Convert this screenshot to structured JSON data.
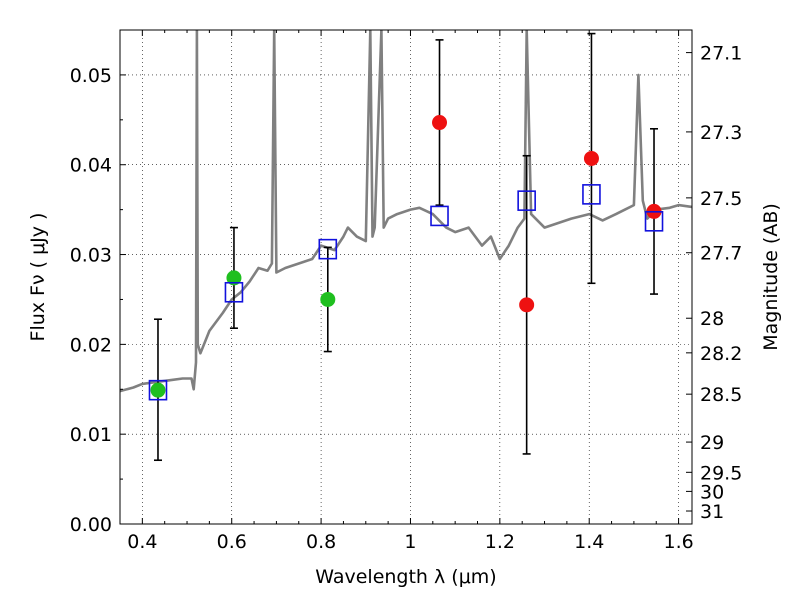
{
  "chart_data": {
    "type": "scatter",
    "xlabel": "Wavelength  λ (μm)",
    "ylabel": "Flux  Fν  ( μJy )",
    "y2label": "Magnitude (AB)",
    "xlim": [
      0.35,
      1.63
    ],
    "ylim": [
      0.0,
      0.055
    ],
    "grid": true,
    "x_ticks": [
      0.4,
      0.6,
      0.8,
      1.0,
      1.2,
      1.4,
      1.6
    ],
    "x_tick_labels": [
      "0.4",
      "0.6",
      "0.8",
      "1",
      "1.2",
      "1.4",
      "1.6"
    ],
    "y_ticks": [
      0.0,
      0.01,
      0.02,
      0.03,
      0.04,
      0.05
    ],
    "y_tick_labels": [
      "0.00",
      "0.01",
      "0.02",
      "0.03",
      "0.04",
      "0.05"
    ],
    "y2_ticks": [
      27.1,
      27.3,
      27.5,
      27.7,
      28,
      28.2,
      28.5,
      29,
      29.5,
      30,
      31
    ],
    "y2_tick_labels": [
      "27.1",
      "27.3",
      "27.5",
      "27.7",
      "28",
      "28.2",
      "28.5",
      "29",
      "29.5",
      "30",
      "31"
    ],
    "series": [
      {
        "marker": "circle",
        "color": "#1fbf1f",
        "points": [
          {
            "x": 0.435,
            "y": 0.0149,
            "err_lo": 0.0078,
            "err_hi": 0.0079
          },
          {
            "x": 0.605,
            "y": 0.0274,
            "err_lo": 0.0056,
            "err_hi": 0.0056
          },
          {
            "x": 0.815,
            "y": 0.025,
            "err_lo": 0.0058,
            "err_hi": 0.0058
          }
        ]
      },
      {
        "marker": "circle",
        "color": "#ee1111",
        "points": [
          {
            "x": 1.065,
            "y": 0.0447,
            "err_lo": 0.0092,
            "err_hi": 0.0092
          },
          {
            "x": 1.26,
            "y": 0.0244,
            "err_lo": 0.0166,
            "err_hi": 0.0166
          },
          {
            "x": 1.405,
            "y": 0.0407,
            "err_lo": 0.0139,
            "err_hi": 0.0139
          },
          {
            "x": 1.545,
            "y": 0.0348,
            "err_lo": 0.0092,
            "err_hi": 0.0092
          }
        ]
      },
      {
        "marker": "square",
        "color": "#1111dd",
        "points": [
          {
            "x": 0.435,
            "y": 0.0149
          },
          {
            "x": 0.605,
            "y": 0.0258
          },
          {
            "x": 0.815,
            "y": 0.0306
          },
          {
            "x": 1.065,
            "y": 0.0343
          },
          {
            "x": 1.26,
            "y": 0.036
          },
          {
            "x": 1.405,
            "y": 0.0367
          },
          {
            "x": 1.545,
            "y": 0.0337
          }
        ]
      },
      {
        "type": "line",
        "color": "#808080",
        "x": [
          0.35,
          0.38,
          0.4,
          0.43,
          0.46,
          0.49,
          0.51,
          0.515,
          0.52,
          0.522,
          0.524,
          0.53,
          0.55,
          0.58,
          0.6,
          0.62,
          0.64,
          0.66,
          0.68,
          0.69,
          0.695,
          0.7,
          0.72,
          0.75,
          0.78,
          0.8,
          0.83,
          0.85,
          0.86,
          0.88,
          0.9,
          0.91,
          0.915,
          0.92,
          0.935,
          0.94,
          0.95,
          0.97,
          1.0,
          1.02,
          1.05,
          1.08,
          1.1,
          1.13,
          1.16,
          1.18,
          1.2,
          1.22,
          1.24,
          1.255,
          1.26,
          1.27,
          1.3,
          1.33,
          1.36,
          1.4,
          1.43,
          1.46,
          1.48,
          1.5,
          1.51,
          1.52,
          1.53,
          1.55,
          1.58,
          1.6,
          1.63
        ],
        "y": [
          0.0148,
          0.0152,
          0.0156,
          0.0158,
          0.016,
          0.0162,
          0.0162,
          0.015,
          0.018,
          0.055,
          0.02,
          0.019,
          0.0215,
          0.0235,
          0.025,
          0.0258,
          0.027,
          0.0285,
          0.0282,
          0.029,
          0.055,
          0.028,
          0.0285,
          0.029,
          0.0295,
          0.031,
          0.0305,
          0.032,
          0.033,
          0.032,
          0.0315,
          0.055,
          0.032,
          0.033,
          0.055,
          0.033,
          0.034,
          0.0345,
          0.035,
          0.0352,
          0.0345,
          0.033,
          0.0325,
          0.033,
          0.031,
          0.032,
          0.0295,
          0.031,
          0.033,
          0.034,
          0.055,
          0.0345,
          0.033,
          0.0335,
          0.034,
          0.0345,
          0.0338,
          0.0345,
          0.035,
          0.0355,
          0.05,
          0.036,
          0.034,
          0.035,
          0.0352,
          0.0355,
          0.0353
        ]
      }
    ]
  }
}
